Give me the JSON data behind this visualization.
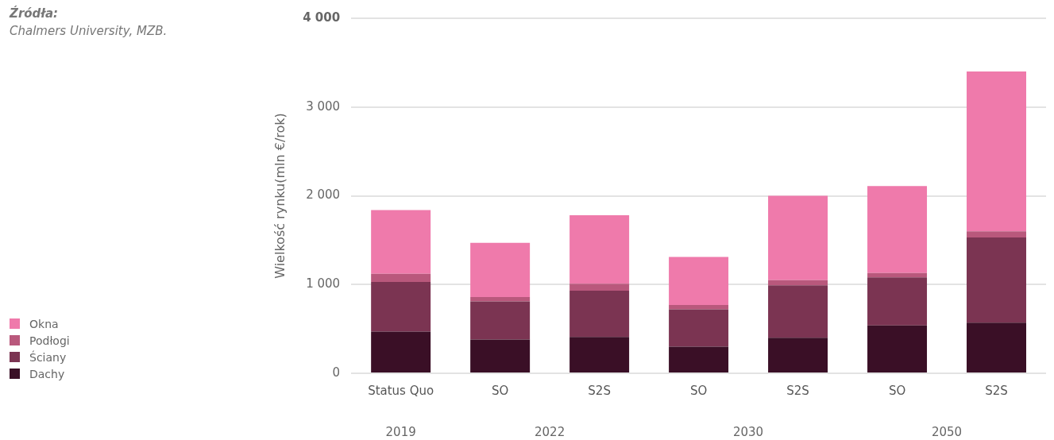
{
  "chart_data": {
    "type": "bar",
    "stacked": true,
    "ylabel": "Wielkość rynku(mln €/rok)",
    "categories": [
      "Status Quo",
      "SO",
      "S2S",
      "SO",
      "S2S",
      "SO",
      "S2S"
    ],
    "series": [
      {
        "name": "Dachy",
        "color": "#3a0f26",
        "values": [
          470,
          380,
          410,
          300,
          400,
          540,
          570
        ]
      },
      {
        "name": "Ściany",
        "color": "#7b3452",
        "values": [
          560,
          430,
          520,
          420,
          590,
          540,
          960
        ]
      },
      {
        "name": "Podłogi",
        "color": "#b9587c",
        "values": [
          90,
          50,
          80,
          50,
          60,
          50,
          70
        ]
      },
      {
        "name": "Okna",
        "color": "#ef7aab",
        "values": [
          720,
          610,
          770,
          540,
          950,
          980,
          1800
        ]
      }
    ],
    "ylim": [
      0,
      4000
    ],
    "yticks": [
      0,
      {
        "value": 1000,
        "label": "1 000"
      },
      {
        "value": 2000,
        "label": "2 000"
      },
      {
        "value": 3000,
        "label": "3 000"
      },
      {
        "value": 4000,
        "label": "4 000"
      }
    ],
    "grid": "y",
    "legend": "bottom left",
    "annotations": [
      "Źródła:",
      "Chalmers University, MZB.",
      "2019",
      "2022",
      "2030",
      "2050"
    ]
  }
}
